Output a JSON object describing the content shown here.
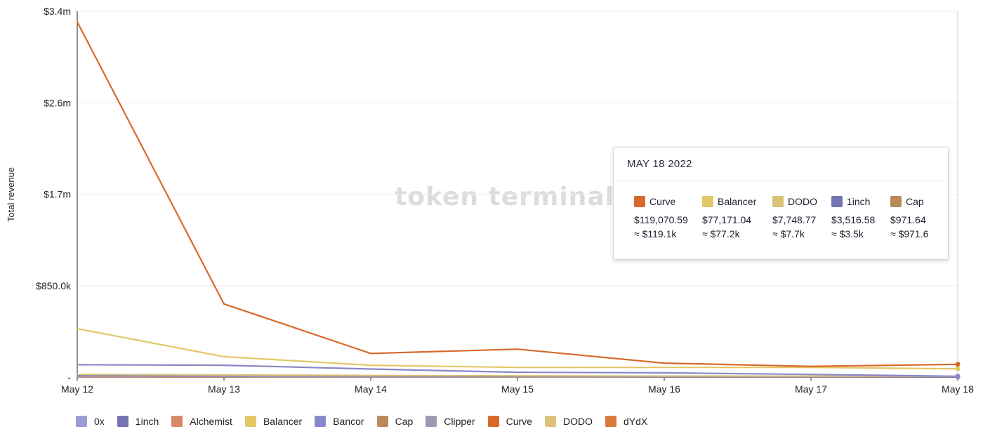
{
  "chart_data": {
    "type": "line",
    "watermark": "token terminal_",
    "ylabel": "Total revenue",
    "yticks": [
      "$3.4m",
      "$2.6m",
      "$1.7m",
      "$850.0k",
      "-"
    ],
    "ytick_values": [
      3400000,
      2550000,
      1700000,
      850000,
      0
    ],
    "ylim": [
      0,
      3400000
    ],
    "categories": [
      "May 12",
      "May 13",
      "May 14",
      "May 15",
      "May 16",
      "May 17",
      "May 18"
    ],
    "grid": true,
    "legend_position": "bottom-left",
    "series": [
      {
        "name": "0x",
        "color": "#9b9bd6",
        "values": [
          10000,
          8000,
          6000,
          5000,
          4000,
          3000,
          2000
        ]
      },
      {
        "name": "1inch",
        "color": "#7474b0",
        "values": [
          20000,
          16000,
          12000,
          8000,
          6000,
          5000,
          3516.58
        ]
      },
      {
        "name": "Alchemist",
        "color": "#d9886a",
        "values": [
          500,
          500,
          500,
          500,
          500,
          500,
          500
        ]
      },
      {
        "name": "Balancer",
        "color": "#e2c766",
        "values": [
          450000,
          190000,
          110000,
          90000,
          90000,
          90000,
          77171.04
        ]
      },
      {
        "name": "Bancor",
        "color": "#8888c8",
        "values": [
          115000,
          110000,
          75000,
          45000,
          40000,
          25000,
          8000
        ]
      },
      {
        "name": "Cap",
        "color": "#b98a5a",
        "values": [
          1500,
          1200,
          1200,
          1100,
          1000,
          1000,
          971.64
        ]
      },
      {
        "name": "Clipper",
        "color": "#9a9ab0",
        "values": [
          3000,
          2500,
          2000,
          2000,
          1500,
          1500,
          1200
        ]
      },
      {
        "name": "Curve",
        "color": "#d8692a",
        "values": [
          3300000,
          680000,
          220000,
          260000,
          130000,
          100000,
          119070.59
        ]
      },
      {
        "name": "DODO",
        "color": "#d9c278",
        "values": [
          25000,
          20000,
          15000,
          12000,
          10000,
          9000,
          7748.77
        ]
      },
      {
        "name": "dYdX",
        "color": "#d87a3a",
        "values": [
          5000,
          4000,
          3000,
          3000,
          2000,
          2000,
          1500
        ]
      }
    ]
  },
  "tooltip": {
    "date": "MAY 18 2022",
    "items": [
      {
        "name": "Curve",
        "color": "#d8692a",
        "exact": "$119,070.59",
        "approx": "≈ $119.1k"
      },
      {
        "name": "Balancer",
        "color": "#e2c766",
        "exact": "$77,171.04",
        "approx": "≈ $77.2k"
      },
      {
        "name": "DODO",
        "color": "#d9c278",
        "exact": "$7,748.77",
        "approx": "≈ $7.7k"
      },
      {
        "name": "1inch",
        "color": "#7474b0",
        "exact": "$3,516.58",
        "approx": "≈ $3.5k"
      },
      {
        "name": "Cap",
        "color": "#b98a5a",
        "exact": "$971.64",
        "approx": "≈ $971.6"
      }
    ]
  }
}
